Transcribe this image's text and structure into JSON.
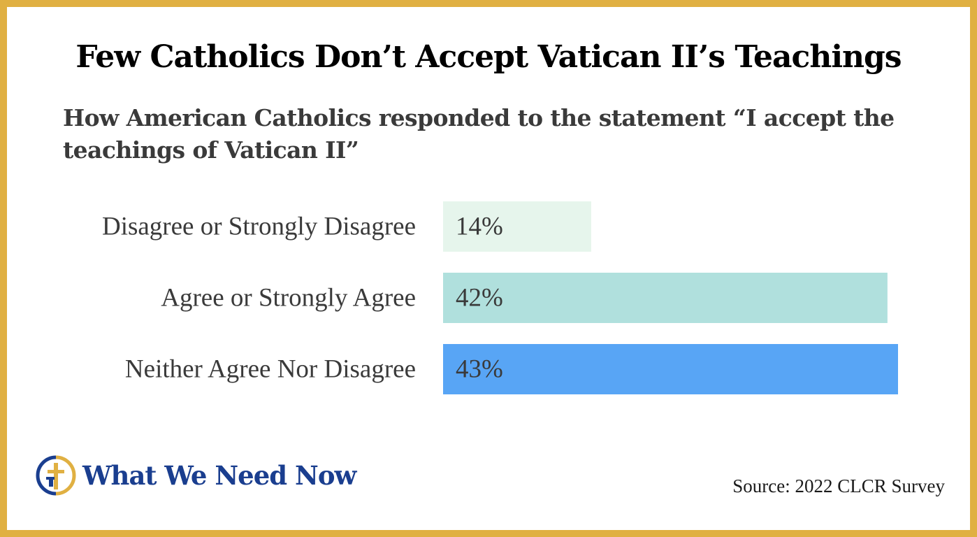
{
  "title": "Few Catholics Don’t Accept Vatican II’s Teachings",
  "subtitle": "How American Catholics responded to the statement “I accept the teachings of Vatican II”",
  "chart_data": {
    "type": "bar",
    "orientation": "horizontal",
    "categories": [
      "Disagree or Strongly Disagree",
      "Agree or Strongly Agree",
      "Neither Agree Nor Disagree"
    ],
    "values": [
      14,
      42,
      43
    ],
    "value_labels": [
      "14%",
      "42%",
      "43%"
    ],
    "unit": "%",
    "colors": [
      "#E6F5EC",
      "#B0E0DD",
      "#58A5F5"
    ],
    "xlim": [
      0,
      43
    ],
    "grid": false,
    "legend": "none",
    "xlabel": "",
    "ylabel": ""
  },
  "brand": {
    "name": "What We Need Now",
    "logo_icon": "circle-cross-logo-icon",
    "color": "#1A3E8F",
    "accent": "#E0B042"
  },
  "source": "Source: 2022 CLCR Survey",
  "frame_color": "#E0B042"
}
